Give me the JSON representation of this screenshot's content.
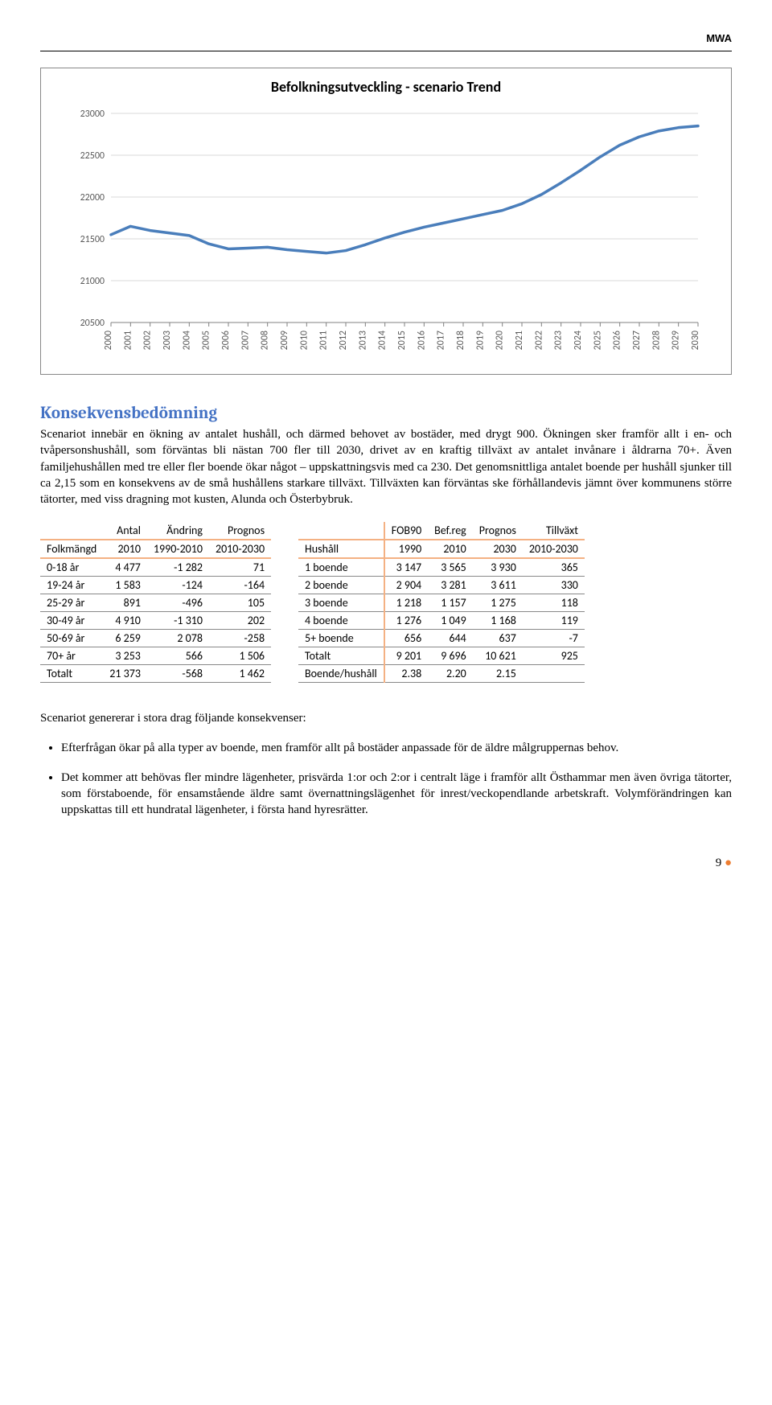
{
  "header": {
    "label": "MWA"
  },
  "chart": {
    "type": "line",
    "title": "Befolkningsutveckling - scenario Trend",
    "x_labels": [
      "2000",
      "2001",
      "2002",
      "2003",
      "2004",
      "2005",
      "2006",
      "2007",
      "2008",
      "2009",
      "2010",
      "2011",
      "2012",
      "2013",
      "2014",
      "2015",
      "2016",
      "2017",
      "2018",
      "2019",
      "2020",
      "2021",
      "2022",
      "2023",
      "2024",
      "2025",
      "2026",
      "2027",
      "2028",
      "2029",
      "2030"
    ],
    "y_ticks": [
      20500,
      21000,
      21500,
      22000,
      22500,
      23000
    ],
    "ylim": [
      20500,
      23000
    ],
    "values": [
      21550,
      21650,
      21600,
      21570,
      21540,
      21440,
      21380,
      21390,
      21400,
      21370,
      21350,
      21330,
      21360,
      21430,
      21510,
      21580,
      21640,
      21690,
      21740,
      21790,
      21840,
      21920,
      22030,
      22170,
      22320,
      22480,
      22620,
      22720,
      22790,
      22830,
      22850
    ],
    "line_color": "#4a7ebb",
    "line_width": 3.5,
    "grid_color": "#d9d9d9",
    "axis_color": "#808080",
    "tick_font_size": 12,
    "title_font_size": 18,
    "background": "#ffffff",
    "inner_w": 730,
    "inner_h": 260
  },
  "section": {
    "heading": "Konsekvensbedömning"
  },
  "paragraph": "Scenariot innebär en ökning av antalet hushåll, och därmed behovet av bostäder, med drygt 900. Ökningen sker framför allt i en- och tvåpersonshushåll, som förväntas bli nästan 700 fler till 2030, drivet av en kraftig tillväxt av antalet invånare i åldrarna 70+. Även familjehushållen med tre eller fler boende ökar något – uppskattningsvis med ca 230. Det genomsnittliga antalet boende per hushåll sjunker till ca 2,15 som en konsekvens av de små hushållens starkare tillväxt. Tillväxten kan förväntas ske förhållandevis jämnt över kommunens större tätorter, med viss dragning mot kusten, Alunda och Österbybruk.",
  "table_left": {
    "columns_top": [
      "",
      "Antal",
      "Ändring",
      "Prognos"
    ],
    "columns_bot": [
      "Folkmängd",
      "2010",
      "1990-2010",
      "2010-2030"
    ],
    "rows": [
      [
        "0-18 år",
        "4 477",
        "-1 282",
        "71"
      ],
      [
        "19-24 år",
        "1 583",
        "-124",
        "-164"
      ],
      [
        "25-29 år",
        "891",
        "-496",
        "105"
      ],
      [
        "30-49 år",
        "4 910",
        "-1 310",
        "202"
      ],
      [
        "50-69 år",
        "6 259",
        "2 078",
        "-258"
      ],
      [
        "70+ år",
        "3 253",
        "566",
        "1 506"
      ],
      [
        "Totalt",
        "21 373",
        "-568",
        "1 462"
      ]
    ]
  },
  "table_right": {
    "columns_top": [
      "",
      "FOB90",
      "Bef.reg",
      "Prognos",
      "Tillväxt"
    ],
    "columns_bot": [
      "Hushåll",
      "1990",
      "2010",
      "2030",
      "2010-2030"
    ],
    "rows": [
      [
        "1 boende",
        "3 147",
        "3 565",
        "3 930",
        "365"
      ],
      [
        "2 boende",
        "2 904",
        "3 281",
        "3 611",
        "330"
      ],
      [
        "3 boende",
        "1 218",
        "1 157",
        "1 275",
        "118"
      ],
      [
        "4 boende",
        "1 276",
        "1 049",
        "1 168",
        "119"
      ],
      [
        "5+ boende",
        "656",
        "644",
        "637",
        "-7"
      ],
      [
        "Totalt",
        "9 201",
        "9 696",
        "10 621",
        "925"
      ],
      [
        "Boende/hushåll",
        "2.38",
        "2.20",
        "2.15",
        ""
      ]
    ]
  },
  "conclusion_intro": "Scenariot genererar i stora drag följande konsekvenser:",
  "bullets": [
    "Efterfrågan ökar på alla typer av boende, men framför allt på bostäder anpassade för de äldre målgruppernas behov.",
    "Det kommer att behövas fler mindre lägenheter, prisvärda 1:or och 2:or i centralt läge i framför allt Östhammar men även övriga tätorter, som förstaboende, för ensamstående äldre samt övernattningslägenhet för inrest/veckopendlande arbetskraft. Volymförändringen kan uppskattas till ett hundratal lägenheter, i första hand hyresrätter."
  ],
  "page_number": "9",
  "colors": {
    "heading_blue": "#4472c4",
    "table_accent": "#f4b183",
    "bullet_orange": "#ed7d31"
  }
}
